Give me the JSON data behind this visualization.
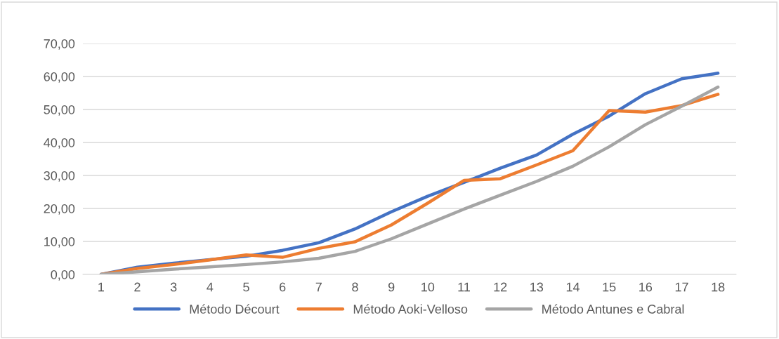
{
  "chart_data": {
    "type": "line",
    "categories": [
      "1",
      "2",
      "3",
      "4",
      "5",
      "6",
      "7",
      "8",
      "9",
      "10",
      "11",
      "12",
      "13",
      "14",
      "15",
      "16",
      "17",
      "18"
    ],
    "series": [
      {
        "name": "Método Décourt",
        "color": "#4472c4",
        "values": [
          0,
          2.2,
          3.4,
          4.5,
          5.5,
          7.3,
          9.6,
          13.8,
          19.0,
          23.7,
          27.9,
          32.2,
          36.2,
          42.5,
          48.0,
          54.8,
          59.3,
          61.0
        ]
      },
      {
        "name": "Método Aoki-Velloso",
        "color": "#ed7d31",
        "values": [
          0,
          1.8,
          3.0,
          4.4,
          5.9,
          5.2,
          7.9,
          9.9,
          15.0,
          21.6,
          28.5,
          29.0,
          33.2,
          37.5,
          49.7,
          49.2,
          51.2,
          54.6
        ]
      },
      {
        "name": "Método Antunes e Cabral",
        "color": "#a5a5a5",
        "values": [
          0,
          0.8,
          1.6,
          2.3,
          3.0,
          3.8,
          4.9,
          7.0,
          10.8,
          15.3,
          19.8,
          24.0,
          28.2,
          32.8,
          38.7,
          45.4,
          51.0,
          56.8
        ]
      }
    ],
    "ylim": [
      0,
      70
    ],
    "yticks": [
      {
        "value": 0,
        "label": "0,00"
      },
      {
        "value": 10,
        "label": "10,00"
      },
      {
        "value": 20,
        "label": "20,00"
      },
      {
        "value": 30,
        "label": "30,00"
      },
      {
        "value": 40,
        "label": "40,00"
      },
      {
        "value": 50,
        "label": "50,00"
      },
      {
        "value": 60,
        "label": "60,00"
      },
      {
        "value": 70,
        "label": "70,00"
      }
    ],
    "grid": "y",
    "legend": "bottom",
    "marker": "none",
    "line_style": "solid"
  }
}
